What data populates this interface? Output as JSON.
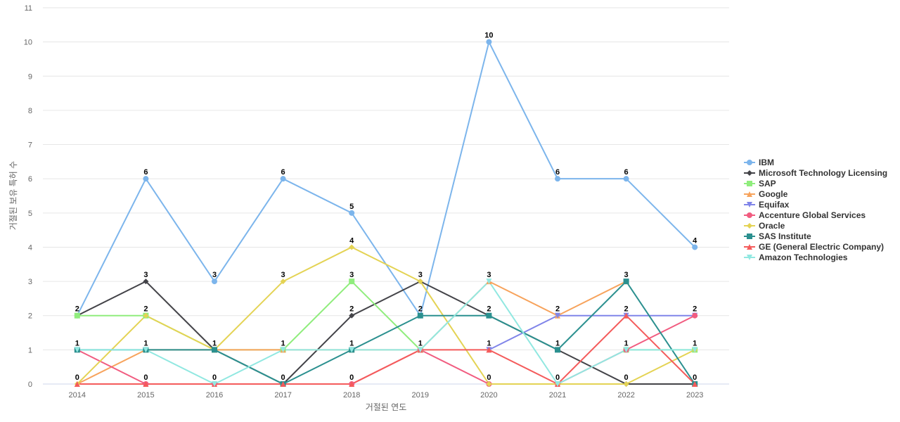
{
  "chart_data": {
    "type": "line",
    "xlabel": "거절된 연도",
    "ylabel": "거절된 보유 특허 수",
    "categories": [
      "2014",
      "2015",
      "2016",
      "2017",
      "2018",
      "2019",
      "2020",
      "2021",
      "2022",
      "2023"
    ],
    "ylim": [
      0,
      11
    ],
    "yticks": [
      0,
      1,
      2,
      3,
      4,
      5,
      6,
      7,
      8,
      9,
      10,
      11
    ],
    "grid": true,
    "legend_position": "right",
    "series": [
      {
        "name": "IBM",
        "color": "#7cb5ec",
        "marker": "circle",
        "values": [
          2,
          6,
          3,
          6,
          5,
          2,
          10,
          6,
          6,
          4
        ]
      },
      {
        "name": "Microsoft Technology Licensing",
        "color": "#434348",
        "marker": "diamond",
        "values": [
          2,
          3,
          1,
          0,
          2,
          3,
          2,
          1,
          0,
          0
        ]
      },
      {
        "name": "SAP",
        "color": "#90ed7d",
        "marker": "square",
        "values": [
          2,
          2,
          1,
          1,
          3,
          1,
          null,
          null,
          1,
          1
        ]
      },
      {
        "name": "Google",
        "color": "#f7a35c",
        "marker": "triangle",
        "values": [
          0,
          1,
          1,
          1,
          1,
          1,
          3,
          2,
          3,
          null
        ]
      },
      {
        "name": "Equifax",
        "color": "#8085e9",
        "marker": "triangle-down",
        "values": [
          null,
          null,
          null,
          null,
          null,
          null,
          1,
          2,
          2,
          2
        ]
      },
      {
        "name": "Accenture Global Services",
        "color": "#f15c80",
        "marker": "circle",
        "values": [
          1,
          0,
          0,
          0,
          0,
          1,
          0,
          0,
          1,
          2
        ]
      },
      {
        "name": "Oracle",
        "color": "#e4d354",
        "marker": "diamond",
        "values": [
          0,
          2,
          1,
          3,
          4,
          3,
          0,
          0,
          0,
          1
        ]
      },
      {
        "name": "SAS Institute",
        "color": "#2b908f",
        "marker": "square",
        "values": [
          1,
          1,
          1,
          0,
          1,
          2,
          2,
          1,
          3,
          0
        ]
      },
      {
        "name": "GE (General Electric Company)",
        "color": "#f45b5b",
        "marker": "triangle",
        "values": [
          0,
          0,
          0,
          0,
          0,
          1,
          1,
          0,
          2,
          0
        ]
      },
      {
        "name": "Amazon Technologies",
        "color": "#91e8e1",
        "marker": "triangle-down",
        "values": [
          1,
          1,
          0,
          1,
          1,
          1,
          3,
          0,
          1,
          1
        ]
      }
    ],
    "data_labels": [
      {
        "x": "2014",
        "value": 0
      },
      {
        "x": "2014",
        "value": 1
      },
      {
        "x": "2014",
        "value": 2
      },
      {
        "x": "2015",
        "value": 0
      },
      {
        "x": "2015",
        "value": 1
      },
      {
        "x": "2015",
        "value": 2
      },
      {
        "x": "2015",
        "value": 3
      },
      {
        "x": "2015",
        "value": 6
      },
      {
        "x": "2016",
        "value": 0
      },
      {
        "x": "2016",
        "value": 1
      },
      {
        "x": "2016",
        "value": 3
      },
      {
        "x": "2017",
        "value": 0
      },
      {
        "x": "2017",
        "value": 1
      },
      {
        "x": "2017",
        "value": 3
      },
      {
        "x": "2017",
        "value": 6
      },
      {
        "x": "2018",
        "value": 0
      },
      {
        "x": "2018",
        "value": 1
      },
      {
        "x": "2018",
        "value": 2
      },
      {
        "x": "2018",
        "value": 3
      },
      {
        "x": "2018",
        "value": 4
      },
      {
        "x": "2018",
        "value": 5
      },
      {
        "x": "2019",
        "value": 1
      },
      {
        "x": "2019",
        "value": 2
      },
      {
        "x": "2019",
        "value": 3
      },
      {
        "x": "2020",
        "value": 0
      },
      {
        "x": "2020",
        "value": 1
      },
      {
        "x": "2020",
        "value": 2
      },
      {
        "x": "2020",
        "value": 3
      },
      {
        "x": "2020",
        "value": 10
      },
      {
        "x": "2021",
        "value": 0
      },
      {
        "x": "2021",
        "value": 1
      },
      {
        "x": "2021",
        "value": 2
      },
      {
        "x": "2021",
        "value": 6
      },
      {
        "x": "2022",
        "value": 0
      },
      {
        "x": "2022",
        "value": 1
      },
      {
        "x": "2022",
        "value": 2
      },
      {
        "x": "2022",
        "value": 3
      },
      {
        "x": "2022",
        "value": 6
      },
      {
        "x": "2023",
        "value": 0
      },
      {
        "x": "2023",
        "value": 1
      },
      {
        "x": "2023",
        "value": 2
      },
      {
        "x": "2023",
        "value": 4
      }
    ]
  }
}
